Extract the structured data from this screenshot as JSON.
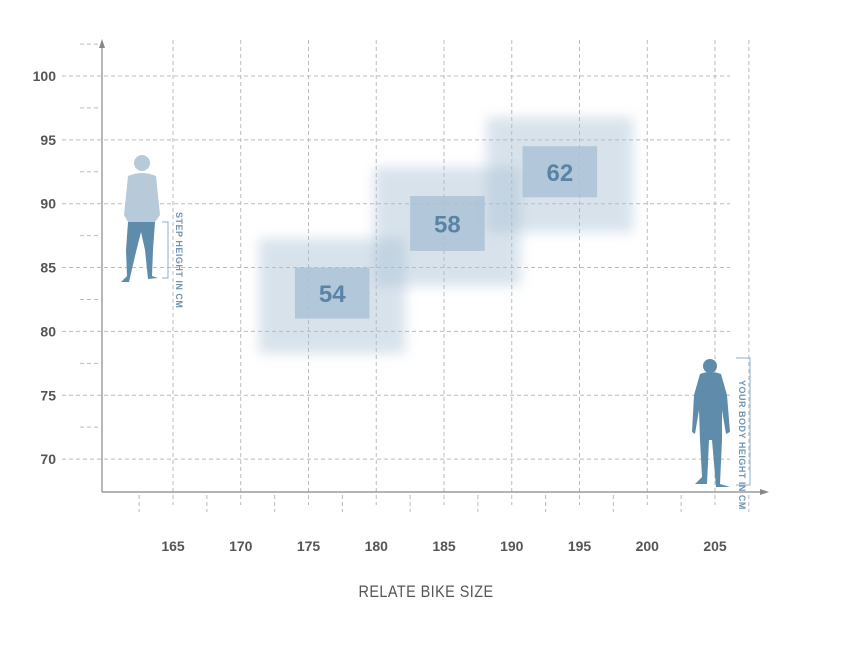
{
  "chart_data": {
    "type": "scatter",
    "title": "",
    "xlabel": "RELATE BIKE SIZE",
    "ylabel": "",
    "xlim": [
      157.5,
      209
    ],
    "ylim": [
      67.5,
      103
    ],
    "xticks": [
      165,
      170,
      175,
      180,
      185,
      190,
      195,
      200,
      205
    ],
    "yticks": [
      70,
      75,
      80,
      85,
      90,
      95,
      100
    ],
    "grid": true,
    "series": [
      {
        "label": "54",
        "x_range": [
          174,
          179.5
        ],
        "y_range": [
          81,
          85
        ]
      },
      {
        "label": "58",
        "x_range": [
          182.5,
          188
        ],
        "y_range": [
          86.3,
          90.6
        ]
      },
      {
        "label": "62",
        "x_range": [
          190.8,
          196.3
        ],
        "y_range": [
          90.5,
          94.5
        ]
      }
    ],
    "annotations": {
      "step_height": "STEP HEIGHT IN CM",
      "body_height": "YOUR BODY HEIGHT IN CM"
    },
    "colors": {
      "box": "#a9c1d5",
      "text": "#5a84a6",
      "figure_light": "#b7cad9",
      "figure_dark": "#5f8cab"
    }
  }
}
